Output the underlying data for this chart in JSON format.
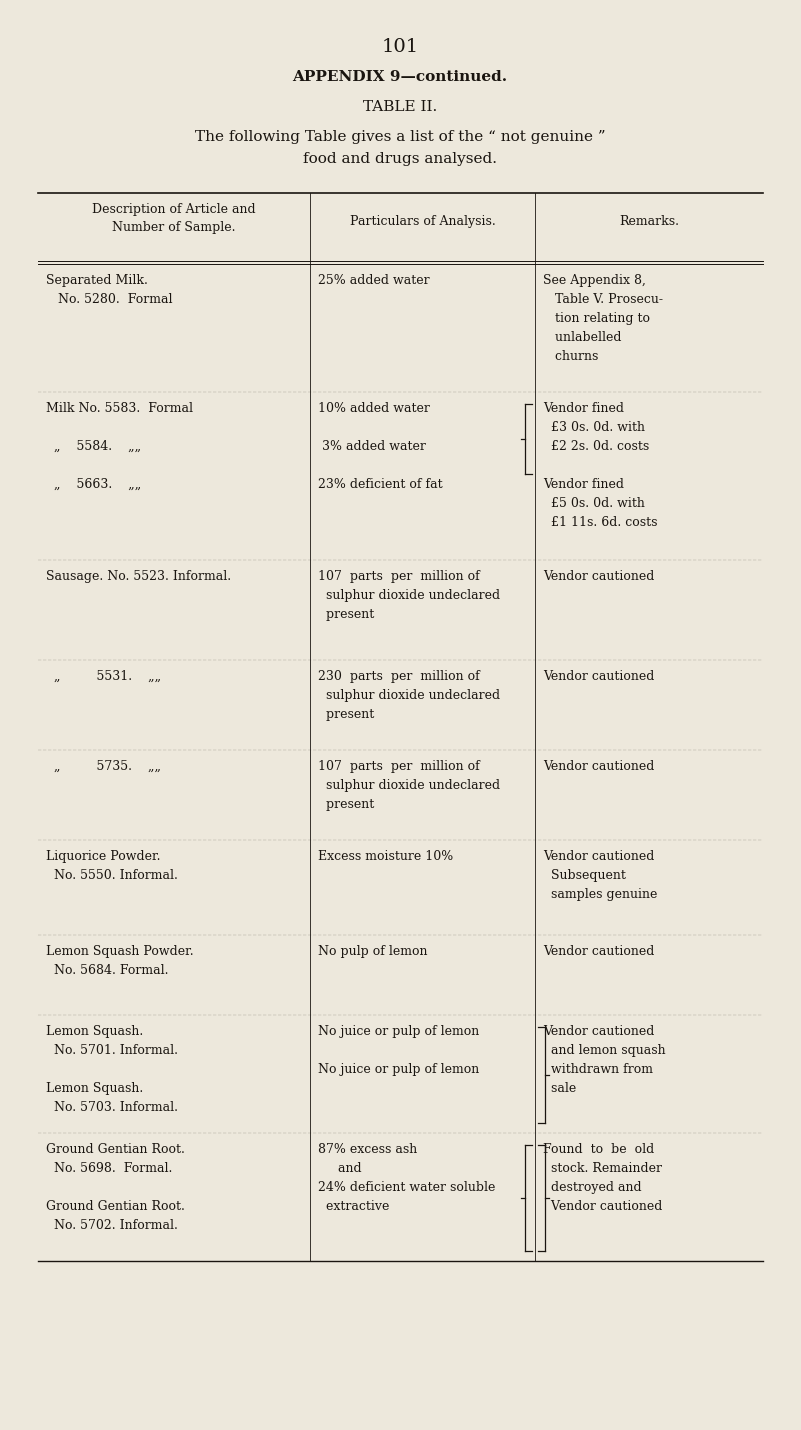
{
  "page_number": "101",
  "appendix_title": "APPENDIX 9—continued.",
  "table_title": "TABLE II.",
  "intro_line1": "The following Table gives a list of the “ not genuine ”",
  "intro_line2": "food and drugs analysed.",
  "col_headers": [
    "Description of Article and\nNumber of Sample.",
    "Particulars of Analysis.",
    "Remarks."
  ],
  "background_color": "#ede8dc",
  "text_color": "#1a1510",
  "rows": [
    {
      "desc": "Separated Milk.\n   No. 5280.  Formal",
      "analysis": "25% added water",
      "remarks": "See Appendix 8,\n   Table V. Prosecu-\n   tion relating to\n   unlabelled\n   churns",
      "bracket_analysis": false,
      "bracket_analysis_span": 0,
      "bracket_remarks": false,
      "bracket_remarks_span": 0
    },
    {
      "desc": "Milk No. 5583.  Formal\n\n  „    5584.    „„\n\n  „    5663.    „„",
      "analysis": "10% added water\n\n 3% added water\n\n23% deficient of fat",
      "remarks": "Vendor fined\n  £3 0s. 0d. with\n  £2 2s. 0d. costs\n\nVendor fined\n  £5 0s. 0d. with\n  £1 11s. 6d. costs",
      "bracket_analysis": true,
      "bracket_analysis_span": 0.55,
      "bracket_remarks": false,
      "bracket_remarks_span": 0
    },
    {
      "desc": "Sausage. No. 5523. Informal.",
      "analysis": "107  parts  per  million of\n  sulphur dioxide undeclared\n  present",
      "remarks": "Vendor cautioned",
      "bracket_analysis": false,
      "bracket_analysis_span": 0,
      "bracket_remarks": false,
      "bracket_remarks_span": 0
    },
    {
      "desc": "  „         5531.    „„",
      "analysis": "230  parts  per  million of\n  sulphur dioxide undeclared\n  present",
      "remarks": "Vendor cautioned",
      "bracket_analysis": false,
      "bracket_analysis_span": 0,
      "bracket_remarks": false,
      "bracket_remarks_span": 0
    },
    {
      "desc": "  „         5735.    „„",
      "analysis": "107  parts  per  million of\n  sulphur dioxide undeclared\n  present",
      "remarks": "Vendor cautioned",
      "bracket_analysis": false,
      "bracket_analysis_span": 0,
      "bracket_remarks": false,
      "bracket_remarks_span": 0
    },
    {
      "desc": "Liquorice Powder.\n  No. 5550. Informal.",
      "analysis": "Excess moisture 10%",
      "remarks": "Vendor cautioned\n  Subsequent\n  samples genuine",
      "bracket_analysis": false,
      "bracket_analysis_span": 0,
      "bracket_remarks": false,
      "bracket_remarks_span": 0
    },
    {
      "desc": "Lemon Squash Powder.\n  No. 5684. Formal.",
      "analysis": "No pulp of lemon",
      "remarks": "Vendor cautioned",
      "bracket_analysis": false,
      "bracket_analysis_span": 0,
      "bracket_remarks": false,
      "bracket_remarks_span": 0
    },
    {
      "desc": "Lemon Squash.\n  No. 5701. Informal.\n\nLemon Squash.\n  No. 5703. Informal.",
      "analysis": "No juice or pulp of lemon\n\nNo juice or pulp of lemon",
      "remarks": "Vendor cautioned\n  and lemon squash\n  withdrawn from\n  sale",
      "bracket_analysis": false,
      "bracket_analysis_span": 0,
      "bracket_remarks": true,
      "bracket_remarks_span": 1.0
    },
    {
      "desc": "Ground Gentian Root.\n  No. 5698.  Formal.\n\nGround Gentian Root.\n  No. 5702. Informal.",
      "analysis": "87% excess ash\n     and\n24% deficient water soluble\n  extractive",
      "remarks": "Found  to  be  old\n  stock. Remainder\n  destroyed and\n  Vendor cautioned",
      "bracket_analysis": true,
      "bracket_analysis_span": 1.0,
      "bracket_remarks": true,
      "bracket_remarks_span": 1.0
    }
  ],
  "font_size_page": 14,
  "font_size_appendix": 11,
  "font_size_table_title": 11,
  "font_size_intro": 11,
  "font_size_header": 9,
  "font_size_body": 9
}
